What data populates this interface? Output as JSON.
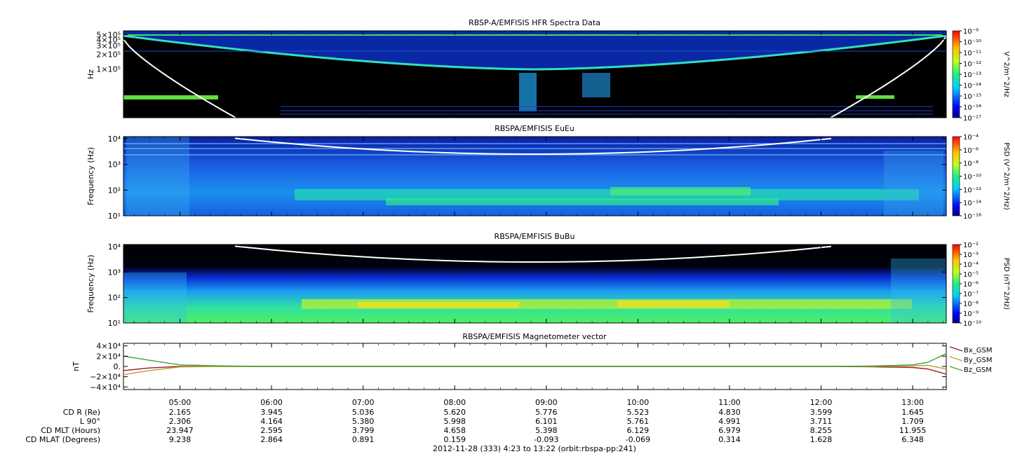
{
  "chart_data": [
    {
      "type": "heatmap",
      "title": "RBSP-A/EMFISIS  HFR Spectra Data",
      "ylabel": "Hz",
      "yticks": [
        {
          "value": 500000,
          "label": "5×10⁵"
        },
        {
          "value": 400000,
          "label": "4×10⁵"
        },
        {
          "value": 300000,
          "label": "3×10⁵"
        },
        {
          "value": 200000,
          "label": "2×10⁵"
        },
        {
          "value": 100000,
          "label": "1×10⁵"
        }
      ],
      "ylim": [
        10000,
        600000
      ],
      "yscale": "log",
      "colorbar_label": "V^2/m^2/Hz",
      "colorbar_ticks": [
        "10⁻⁹",
        "10⁻¹⁰",
        "10⁻¹¹",
        "10⁻¹²",
        "10⁻¹³",
        "10⁻¹⁴",
        "10⁻¹⁵",
        "10⁻¹⁶",
        "10⁻¹⁷"
      ],
      "colorbar_range": [
        "1e-17",
        "1e-9"
      ]
    },
    {
      "type": "heatmap",
      "title": "RBSPA/EMFISIS  EuEu",
      "ylabel": "Frequency (Hz)",
      "yticks": [
        {
          "value": 10000,
          "label": "10⁴"
        },
        {
          "value": 1000,
          "label": "10³"
        },
        {
          "value": 100,
          "label": "10²"
        },
        {
          "value": 10,
          "label": "10¹"
        }
      ],
      "ylim": [
        10,
        12000
      ],
      "yscale": "log",
      "colorbar_label": "PSD (V^2/m^2/Hz)",
      "colorbar_ticks": [
        "10⁻⁴",
        "10⁻⁶",
        "10⁻⁸",
        "10⁻¹⁰",
        "10⁻¹²",
        "10⁻¹⁴",
        "10⁻¹⁶"
      ],
      "colorbar_range": [
        "1e-16",
        "1e-4"
      ]
    },
    {
      "type": "heatmap",
      "title": "RBSPA/EMFISIS  BuBu",
      "ylabel": "Frequency (Hz)",
      "yticks": [
        {
          "value": 10000,
          "label": "10⁴"
        },
        {
          "value": 1000,
          "label": "10³"
        },
        {
          "value": 100,
          "label": "10²"
        },
        {
          "value": 10,
          "label": "10¹"
        }
      ],
      "ylim": [
        10,
        12000
      ],
      "yscale": "log",
      "colorbar_label": "PSD (nT^2/Hz)",
      "colorbar_ticks": [
        "10⁻²",
        "10⁻³",
        "10⁻⁴",
        "10⁻⁵",
        "10⁻⁶",
        "10⁻⁷",
        "10⁻⁸",
        "10⁻⁹",
        "10⁻¹⁰"
      ],
      "colorbar_range": [
        "1e-10",
        "1e-2"
      ]
    },
    {
      "type": "line",
      "title": "RBSPA/EMFISIS  Magnetometer vector",
      "ylabel": "nT",
      "yticks": [
        {
          "value": 40000,
          "label": "4×10⁴"
        },
        {
          "value": 20000,
          "label": "2×10⁴"
        },
        {
          "value": 0,
          "label": "0."
        },
        {
          "value": -20000,
          "label": "−2×10⁴"
        },
        {
          "value": -40000,
          "label": "−4×10⁴"
        }
      ],
      "ylim": [
        -45000,
        45000
      ],
      "x": [
        "04:23",
        "04:40",
        "05:00",
        "05:30",
        "06:00",
        "07:00",
        "08:00",
        "09:00",
        "10:00",
        "11:00",
        "12:00",
        "12:30",
        "13:00",
        "13:10",
        "13:22"
      ],
      "series": [
        {
          "name": "Bx_GSM",
          "color": "#9b1b1b",
          "values": [
            -8000,
            -3000,
            0,
            0,
            0,
            0,
            0,
            0,
            0,
            0,
            0,
            -500,
            -2000,
            -5000,
            -15000
          ]
        },
        {
          "name": "By_GSM",
          "color": "#b8a030",
          "values": [
            -16000,
            -8000,
            -1000,
            0,
            0,
            0,
            0,
            0,
            0,
            0,
            0,
            0,
            1000,
            2000,
            -5000
          ]
        },
        {
          "name": "Bz_GSM",
          "color": "#3aa63a",
          "values": [
            20000,
            12000,
            3000,
            1000,
            0,
            0,
            0,
            0,
            0,
            0,
            0,
            500,
            3000,
            8000,
            25000
          ]
        }
      ],
      "legend_position": "right"
    }
  ],
  "x_axis": {
    "tick_labels": [
      "05:00",
      "06:00",
      "07:00",
      "08:00",
      "09:00",
      "10:00",
      "11:00",
      "12:00",
      "13:00"
    ],
    "start": "04:23",
    "end": "13:22"
  },
  "ephemeris": {
    "rows": [
      {
        "label": "CD R (Re)",
        "values": [
          "2.165",
          "3.945",
          "5.036",
          "5.620",
          "5.776",
          "5.523",
          "4.830",
          "3.599",
          "1.645"
        ]
      },
      {
        "label": "L 90°",
        "values": [
          "2.306",
          "4.164",
          "5.380",
          "5.998",
          "6.101",
          "5.761",
          "4.991",
          "3.711",
          "1.709"
        ]
      },
      {
        "label": "CD MLT (Hours)",
        "values": [
          "23.947",
          "2.595",
          "3.799",
          "4.658",
          "5.398",
          "6.129",
          "6.979",
          "8.255",
          "11.955"
        ]
      },
      {
        "label": "CD MLAT (Degrees)",
        "values": [
          "9.238",
          "2.864",
          "0.891",
          "0.159",
          "-0.093",
          "-0.069",
          "0.314",
          "1.628",
          "6.348"
        ]
      }
    ]
  },
  "footer": "2012-11-28 (333) 4:23 to 13:22 (orbit:rbspa-pp:241)"
}
